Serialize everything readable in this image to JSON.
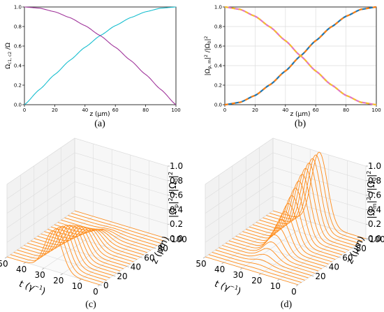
{
  "colors": {
    "cyan": "#17becf",
    "purple": "#a0359b",
    "blue": "#1f77b4",
    "orange": "#ff7f0e",
    "pink": "#e377c2",
    "yellow": "#f5c02a",
    "surface": "#ff8c1a",
    "grid": "#dddddd"
  },
  "chart_data": [
    {
      "panel_label": "(a)",
      "type": "line",
      "xlabel": "z (μm)",
      "ylabel": "Ω_{c1,c2} /Ω",
      "ylabel_main": "Ω",
      "ylabel_sub": "c1, c2",
      "ylabel_tail": " /Ω",
      "xlim": [
        0,
        100
      ],
      "ylim": [
        0,
        1
      ],
      "xticks": [
        "0",
        "20",
        "40",
        "60",
        "80",
        "100"
      ],
      "yticks": [
        "0.0",
        "0.2",
        "0.4",
        "0.6",
        "0.8",
        "1.0"
      ],
      "grid": false,
      "series": [
        {
          "color": "#17becf",
          "x": [
            0,
            10,
            20,
            30,
            40,
            50,
            60,
            70,
            80,
            90,
            100
          ],
          "y": [
            0,
            0.156,
            0.309,
            0.454,
            0.588,
            0.707,
            0.809,
            0.891,
            0.951,
            0.988,
            1.0
          ]
        },
        {
          "color": "#a0359b",
          "x": [
            0,
            10,
            20,
            30,
            40,
            50,
            60,
            70,
            80,
            90,
            100
          ],
          "y": [
            1.0,
            0.988,
            0.951,
            0.891,
            0.809,
            0.707,
            0.588,
            0.454,
            0.309,
            0.156,
            0
          ]
        }
      ]
    },
    {
      "panel_label": "(b)",
      "type": "line",
      "xlabel": "z (μm)",
      "ylabel": "|Ω_{p,m}|² /|Ω_0|²",
      "ylabel_pre": "|Ω",
      "ylabel_sub": "p, m",
      "ylabel_mid": "|",
      "ylabel_sup": "2",
      "ylabel_post": " /|Ω",
      "ylabel_sub2": "0",
      "ylabel_post2": "|",
      "ylabel_sup2": "2",
      "xlim": [
        0,
        100
      ],
      "ylim": [
        0,
        1
      ],
      "xticks": [
        "0",
        "20",
        "40",
        "60",
        "80",
        "100"
      ],
      "yticks": [
        "0.0",
        "0.2",
        "0.4",
        "0.6",
        "0.8",
        "1.0"
      ],
      "grid": true,
      "series": [
        {
          "color": "#1f77b4",
          "dash_color": "#ff7f0e",
          "x": [
            0,
            10,
            20,
            30,
            40,
            50,
            60,
            70,
            80,
            90,
            100
          ],
          "y": [
            0,
            0.024,
            0.095,
            0.206,
            0.345,
            0.5,
            0.655,
            0.794,
            0.905,
            0.976,
            1.0
          ]
        },
        {
          "color": "#e377c2",
          "dash_color": "#f5c02a",
          "x": [
            0,
            10,
            20,
            30,
            40,
            50,
            60,
            70,
            80,
            90,
            100
          ],
          "y": [
            1.0,
            0.976,
            0.905,
            0.794,
            0.655,
            0.5,
            0.345,
            0.206,
            0.095,
            0.024,
            0
          ]
        }
      ]
    },
    {
      "panel_label": "(c)",
      "type": "surface-3d",
      "xlabel": "t (γ⁻¹)",
      "xlabel_main": "t (",
      "xlabel_gamma": "γ",
      "xlabel_sup": "−1",
      "xlabel_close": ")",
      "ylabel": "z (μm)",
      "zlabel": "|Ω_p|² /|Ω_0|²",
      "zlabel_pre": "|Ω",
      "zlabel_sub": "p",
      "zlabel_mid": "|",
      "zlabel_sup": "2",
      "zlabel_post": " /|Ω",
      "zlabel_sub2": "0",
      "zlabel_post2": "|",
      "zlabel_sup2": "2",
      "tlim": [
        0,
        50
      ],
      "zlim_um": [
        0,
        100
      ],
      "amp_lim": [
        0,
        1
      ],
      "tticks": [
        "50",
        "40",
        "30",
        "20",
        "10",
        "0"
      ],
      "zticks": [
        "0",
        "20",
        "40",
        "60",
        "80",
        "100"
      ],
      "ampticks": [
        "0.0",
        "0.2",
        "0.4",
        "0.6",
        "0.8",
        "1.0"
      ],
      "pulse_center_t": 25,
      "pulse_width_t": 6.5,
      "peak_amp": 0.55,
      "amp_decay": "cos2"
    },
    {
      "panel_label": "(d)",
      "type": "surface-3d",
      "xlabel": "t (γ⁻¹)",
      "xlabel_main": "t (",
      "xlabel_gamma": "γ",
      "xlabel_sup": "−1",
      "xlabel_close": ")",
      "ylabel": "z (μm)",
      "zlabel": "|Ω_m|² /|Ω_0|²",
      "zlabel_pre": "|Ω",
      "zlabel_sub": "m",
      "zlabel_mid": "|",
      "zlabel_sup": "2",
      "zlabel_post": " /|Ω",
      "zlabel_sub2": "0",
      "zlabel_post2": "|",
      "zlabel_sup2": "2",
      "tlim": [
        0,
        50
      ],
      "zlim_um": [
        0,
        100
      ],
      "amp_lim": [
        0,
        1
      ],
      "tticks": [
        "50",
        "40",
        "30",
        "20",
        "10",
        "0"
      ],
      "zticks": [
        "20",
        "40",
        "60",
        "80",
        "100"
      ],
      "ampticks": [
        "0.0",
        "0.2",
        "0.4",
        "0.6",
        "0.8",
        "1.0"
      ],
      "pulse_center_t": 25,
      "pulse_width_t": 6,
      "peak_amp": 1.0,
      "amp_decay": "sin2"
    }
  ]
}
